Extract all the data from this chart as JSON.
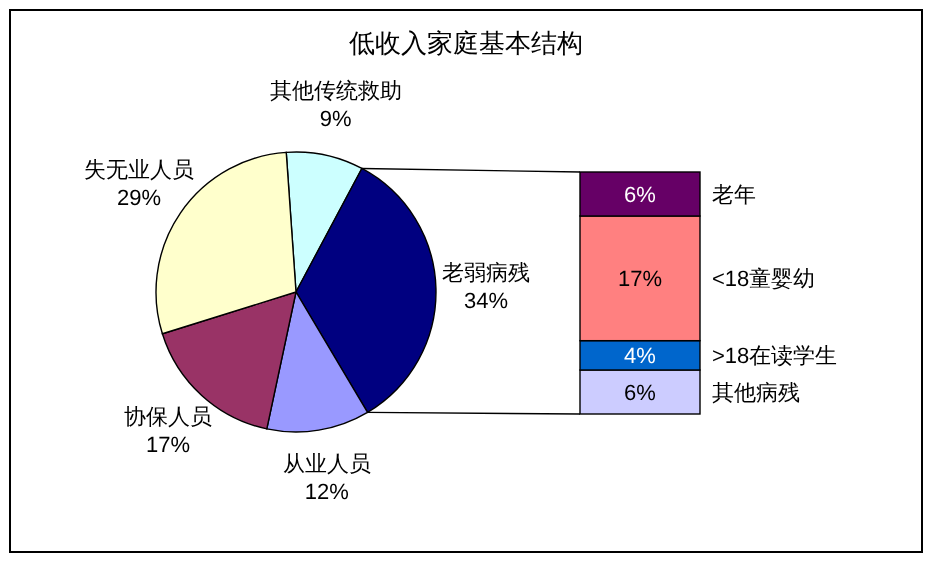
{
  "chart_data": [
    {
      "type": "pie",
      "title": "低收入家庭基本结构",
      "categories": [
        "其他传统救助",
        "老弱病残",
        "从业人员",
        "协保人员",
        "失无业人员"
      ],
      "values": [
        9,
        34,
        12,
        17,
        29
      ],
      "value_labels": [
        "9%",
        "34%",
        "12%",
        "17%",
        "29%"
      ],
      "colors": [
        "#ccffff",
        "#000080",
        "#9999ff",
        "#993366",
        "#ffffcc"
      ]
    },
    {
      "type": "bar",
      "stacked": true,
      "categories": [
        null
      ],
      "series": [
        {
          "name": "其他病残",
          "color": "#ccccff",
          "values": [
            6
          ],
          "value_labels": [
            "6%"
          ]
        },
        {
          "name": ">18在读学生",
          "color": "#0066cc",
          "values": [
            4
          ],
          "value_labels": [
            "4%"
          ]
        },
        {
          "name": "<18童婴幼",
          "color": "#ff8080",
          "values": [
            17
          ],
          "value_labels": [
            "17%"
          ]
        },
        {
          "name": "老年",
          "color": "#660066",
          "values": [
            6
          ],
          "value_labels": [
            "6%"
          ]
        }
      ]
    }
  ]
}
